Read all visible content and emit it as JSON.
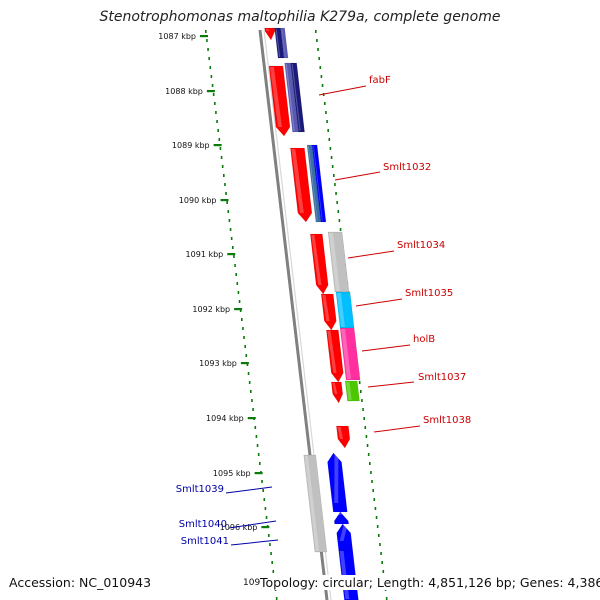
{
  "title": "Stenotrophomonas maltophilia K279a, complete genome",
  "footer": {
    "accession": "Accession: NC_010943",
    "topology": "Topology: circular; Length: 4,851,126 bp; Genes: 4,386",
    "partial_tick": "109"
  },
  "ticks": [
    "1087 kbp",
    "1088 kbp",
    "1089 kbp",
    "1090 kbp",
    "1091 kbp",
    "1092 kbp",
    "1093 kbp",
    "1094 kbp",
    "1095 kbp",
    "1096 kbp"
  ],
  "gene_labels": [
    {
      "text": "fabF",
      "strand": "forward"
    },
    {
      "text": "Smlt1032",
      "strand": "forward"
    },
    {
      "text": "Smlt1034",
      "strand": "forward"
    },
    {
      "text": "Smlt1035",
      "strand": "forward"
    },
    {
      "text": "holB",
      "strand": "forward"
    },
    {
      "text": "Smlt1037",
      "strand": "forward"
    },
    {
      "text": "Smlt1038",
      "strand": "forward"
    },
    {
      "text": "Smlt1039",
      "strand": "reverse"
    },
    {
      "text": "Smlt1040",
      "strand": "reverse"
    },
    {
      "text": "Smlt1041",
      "strand": "reverse"
    }
  ],
  "colors": {
    "cds_forward": "#ff0000",
    "cds_reverse": "#0000ff",
    "navy": "#1a1a7a",
    "slate": "#5a5ab4",
    "steel": "#3a6ea5",
    "grey": "#c0c0c0",
    "cyan": "#00bfff",
    "magenta": "#ff2fa0",
    "green": "#4cc800",
    "backbone": "#808080",
    "ticks": "#0a7a0a",
    "label_forward": "#cc0000",
    "label_reverse": "#0000aa"
  }
}
